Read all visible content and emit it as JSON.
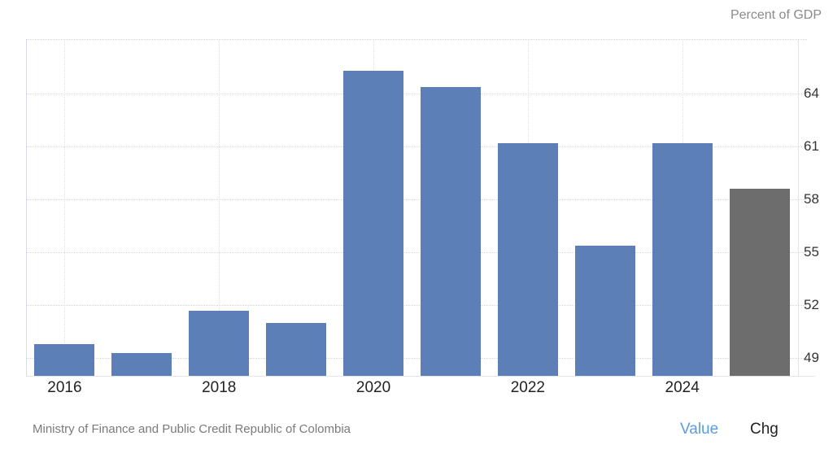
{
  "header": {
    "unit_label": "Percent of GDP"
  },
  "footer": {
    "source": "Ministry of Finance and Public Credit Republic of Colombia",
    "value_button": "Value",
    "chg_button": "Chg"
  },
  "colors": {
    "bar": "#5b7fb6",
    "forecast_bar": "#6d6d6d",
    "active_button": "#5b9be6"
  },
  "chart_data": {
    "type": "bar",
    "title": "",
    "unit": "Percent of GDP",
    "xlabel": "",
    "ylabel": "Percent of GDP",
    "categories": [
      "2016",
      "2017",
      "2018",
      "2019",
      "2020",
      "2021",
      "2022",
      "2023",
      "2024",
      "2025"
    ],
    "values": [
      49.8,
      49.3,
      51.7,
      51.0,
      65.3,
      64.4,
      61.2,
      55.4,
      61.2,
      58.6
    ],
    "highlight": {
      "category": "2025",
      "color": "#6d6d6d",
      "note": "last bar shown in gray"
    },
    "x_tick_labels": [
      "2016",
      "2018",
      "2020",
      "2022",
      "2024"
    ],
    "y_ticks": [
      49,
      52,
      55,
      58,
      61,
      64
    ],
    "ylim": [
      48,
      67.1
    ],
    "grid": true,
    "y_axis_position": "right",
    "source": "Ministry of Finance and Public Credit Republic of Colombia"
  }
}
